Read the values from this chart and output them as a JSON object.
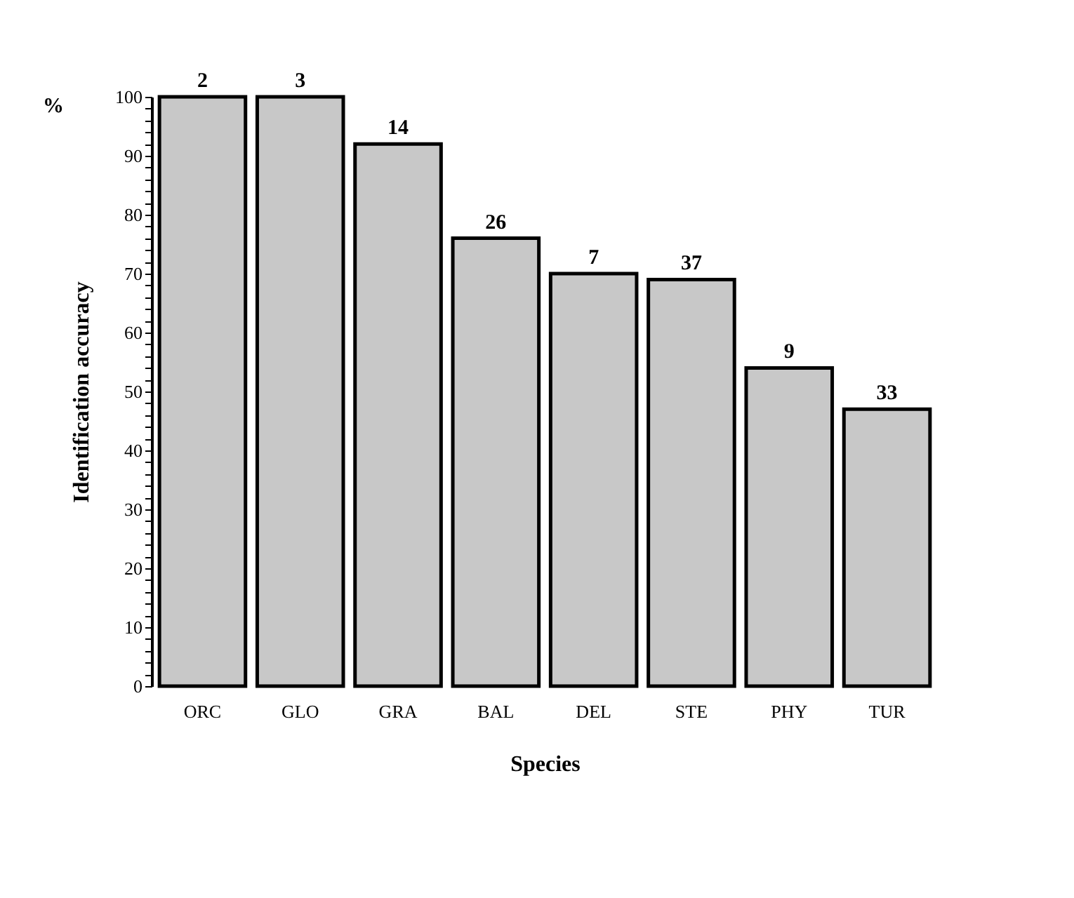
{
  "chart_data": {
    "type": "bar",
    "categories": [
      "ORC",
      "GLO",
      "GRA",
      "BAL",
      "DEL",
      "STE",
      "PHY",
      "TUR"
    ],
    "values": [
      100,
      100,
      92,
      76,
      70,
      69,
      54,
      47
    ],
    "color": "#c8c8c8",
    "xlabel": "Species",
    "ylabel": "Identification accuracy",
    "annotations": [
      "%",
      {
        "text": "2",
        "x": "ORC",
        "y": 100
      },
      {
        "text": "3",
        "x": "GLO",
        "y": 100
      },
      {
        "text": "14",
        "x": "GRA",
        "y": 92
      },
      {
        "text": "26",
        "x": "BAL",
        "y": 76
      },
      {
        "text": "7",
        "x": "DEL",
        "y": 70
      },
      {
        "text": "37",
        "x": "STE",
        "y": 69
      },
      {
        "text": "9",
        "x": "PHY",
        "y": 54
      },
      {
        "text": "33",
        "x": "TUR",
        "y": 47
      }
    ],
    "ylim": [
      0,
      100
    ],
    "yticks": [
      0,
      {
        "value": 2,
        "label": null
      },
      {
        "value": 4,
        "label": null
      },
      {
        "value": 6,
        "label": null
      },
      {
        "value": 8,
        "label": null
      },
      10,
      {
        "value": 12,
        "label": null
      },
      {
        "value": 14,
        "label": null
      },
      {
        "value": 16,
        "label": null
      },
      {
        "value": 18,
        "label": null
      },
      20,
      {
        "value": 22,
        "label": null
      },
      {
        "value": 24,
        "label": null
      },
      {
        "value": 26,
        "label": null
      },
      {
        "value": 28,
        "label": null
      },
      30,
      {
        "value": 32,
        "label": null
      },
      {
        "value": 34,
        "label": null
      },
      {
        "value": 36,
        "label": null
      },
      {
        "value": 38,
        "label": null
      },
      40,
      {
        "value": 42,
        "label": null
      },
      {
        "value": 44,
        "label": null
      },
      {
        "value": 46,
        "label": null
      },
      {
        "value": 48,
        "label": null
      },
      50,
      {
        "value": 52,
        "label": null
      },
      {
        "value": 54,
        "label": null
      },
      {
        "value": 56,
        "label": null
      },
      {
        "value": 58,
        "label": null
      },
      60,
      {
        "value": 62,
        "label": null
      },
      {
        "value": 64,
        "label": null
      },
      {
        "value": 66,
        "label": null
      },
      {
        "value": 68,
        "label": null
      },
      70,
      {
        "value": 72,
        "label": null
      },
      {
        "value": 74,
        "label": null
      },
      {
        "value": 76,
        "label": null
      },
      {
        "value": 78,
        "label": null
      },
      80,
      {
        "value": 82,
        "label": null
      },
      {
        "value": 84,
        "label": null
      },
      {
        "value": 86,
        "label": null
      },
      {
        "value": 88,
        "label": null
      },
      90,
      {
        "value": 92,
        "label": null
      },
      {
        "value": 94,
        "label": null
      },
      {
        "value": 96,
        "label": null
      },
      {
        "value": 98,
        "label": null
      },
      100
    ],
    "grid": false
  }
}
